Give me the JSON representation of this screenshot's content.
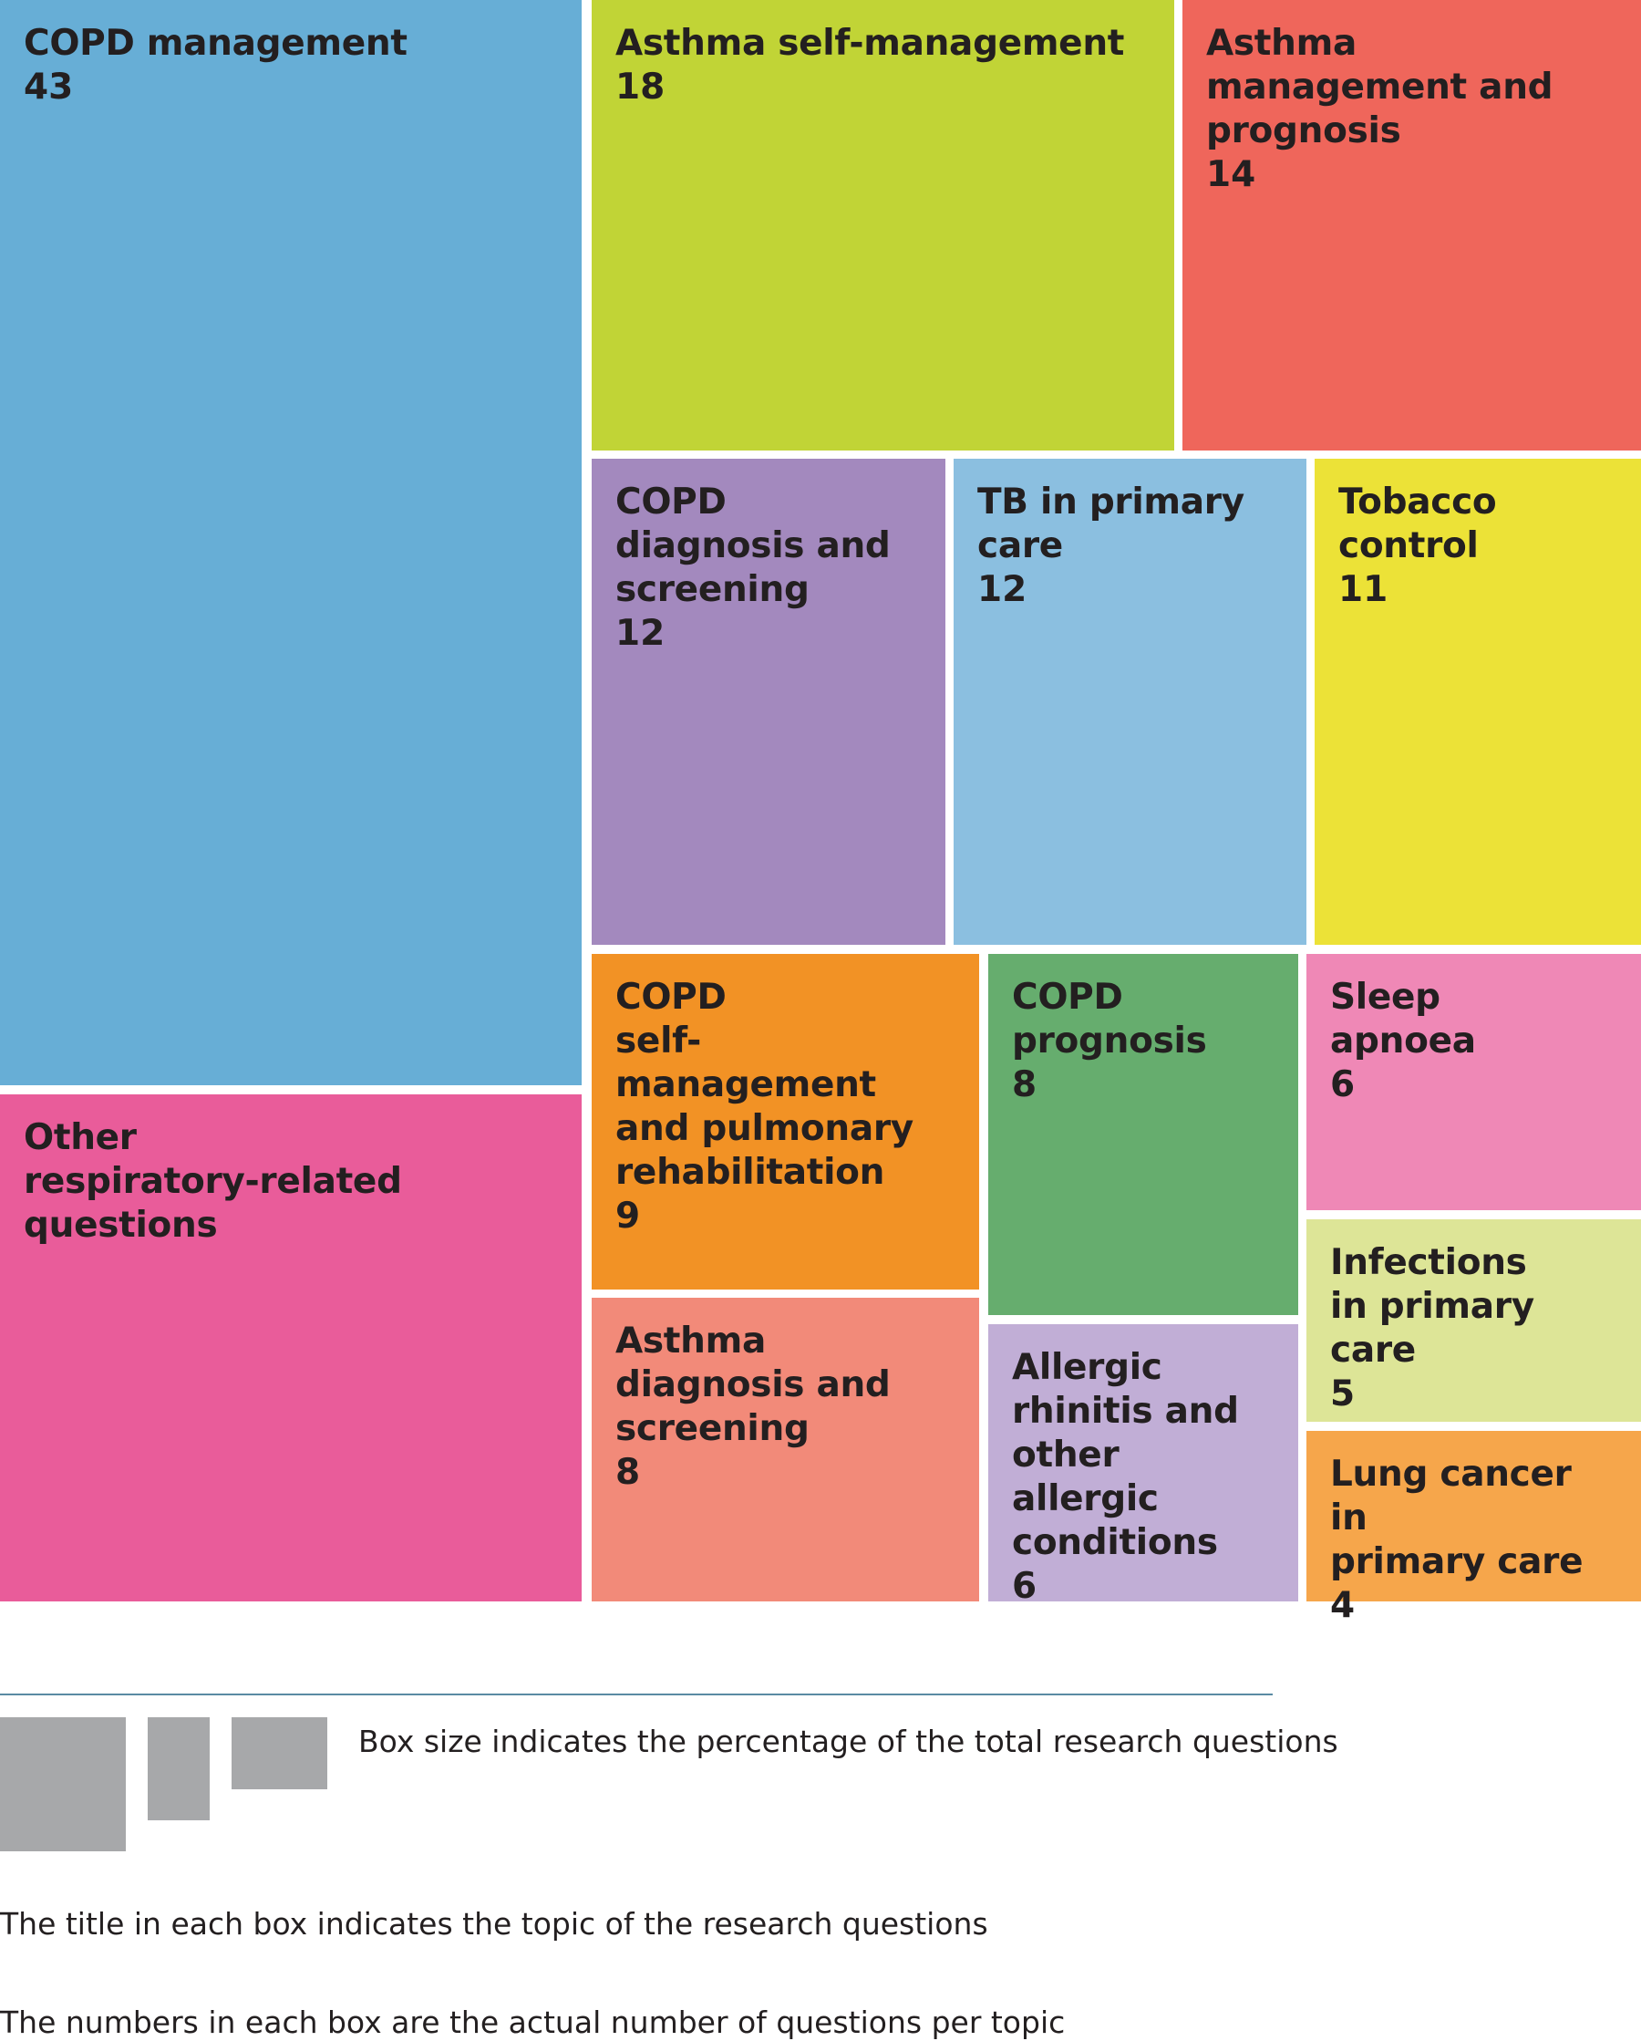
{
  "chart_data": {
    "type": "treemap",
    "items": [
      {
        "label": "COPD management",
        "value": 43,
        "color": "#67aed6"
      },
      {
        "label": "Other\nrespiratory-related\nquestions",
        "value": null,
        "color": "#e95c9a"
      },
      {
        "label": "Asthma self-management",
        "value": 18,
        "color": "#c1d436"
      },
      {
        "label": "Asthma\nmanagement and\nprognosis",
        "value": 14,
        "color": "#ef665b"
      },
      {
        "label": "COPD\ndiagnosis and\nscreening",
        "value": 12,
        "color": "#a389be"
      },
      {
        "label": "TB in primary\ncare",
        "value": 12,
        "color": "#8bbfe0"
      },
      {
        "label": "Tobacco\ncontrol",
        "value": 11,
        "color": "#ece237"
      },
      {
        "label": "COPD\nself-management\nand pulmonary\nrehabilitation",
        "value": 9,
        "color": "#f29225"
      },
      {
        "label": "COPD\nprognosis",
        "value": 8,
        "color": "#66ad6e"
      },
      {
        "label": "Sleep\napnoea",
        "value": 6,
        "color": "#ef88b6"
      },
      {
        "label": "Asthma\ndiagnosis and\nscreening",
        "value": 8,
        "color": "#f28a79"
      },
      {
        "label": "Allergic\nrhinitis and\nother allergic\nconditions",
        "value": 6,
        "color": "#c1aed6"
      },
      {
        "label": "Infections\nin primary\ncare",
        "value": 5,
        "color": "#dde597"
      },
      {
        "label": "Lung cancer in\nprimary care",
        "value": 4,
        "color": "#f6a64b"
      }
    ]
  },
  "legend": {
    "box_color": "#a7a8aa",
    "rule_color": "#5a8aa3",
    "box_size_note": "Box size indicates the percentage of the total research questions",
    "title_note": "The title in each box indicates the topic of the research questions",
    "number_note": "The numbers in each box are the actual number of questions per topic"
  }
}
